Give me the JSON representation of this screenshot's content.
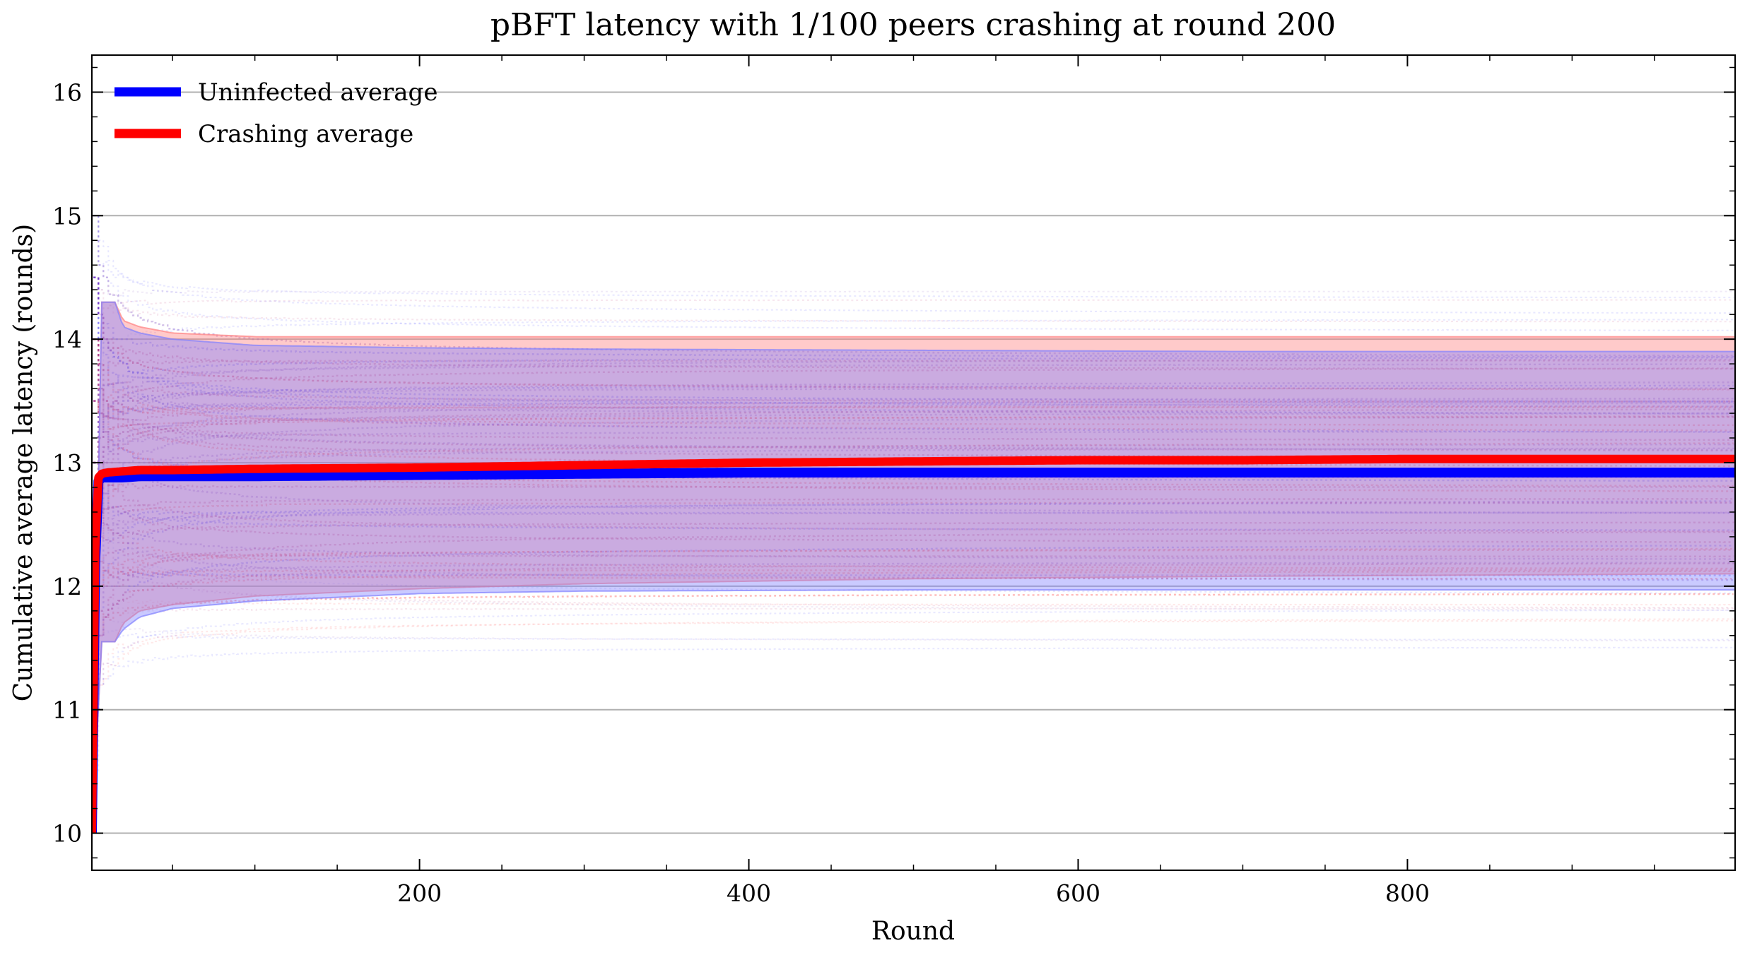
{
  "chart_data": {
    "type": "line",
    "title": "pBFT latency with 1/100 peers crashing at round 200",
    "xlabel": "Round",
    "ylabel": "Cumulative average latency (rounds)",
    "xlim": [
      1,
      999
    ],
    "ylim": [
      9.7,
      16.3
    ],
    "xticks": [
      200,
      400,
      600,
      800
    ],
    "yticks": [
      10,
      11,
      12,
      13,
      14,
      15,
      16
    ],
    "grid": "horizontal",
    "legend_position": "top-left",
    "series": [
      {
        "name": "Uninfected average",
        "color": "#0000ff",
        "x": [
          1,
          3,
          5,
          7,
          10,
          20,
          30,
          50,
          100,
          200,
          300,
          400,
          500,
          600,
          700,
          800,
          900,
          999
        ],
        "y": [
          10.0,
          12.2,
          12.85,
          12.88,
          12.88,
          12.88,
          12.89,
          12.89,
          12.89,
          12.9,
          12.91,
          12.92,
          12.92,
          12.92,
          12.92,
          12.92,
          12.92,
          12.92
        ]
      },
      {
        "name": "Crashing average",
        "color": "#ff0000",
        "x": [
          1,
          3,
          5,
          7,
          10,
          20,
          30,
          50,
          100,
          200,
          300,
          400,
          500,
          600,
          700,
          800,
          900,
          999
        ],
        "y": [
          10.0,
          12.3,
          12.88,
          12.91,
          12.92,
          12.93,
          12.94,
          12.94,
          12.95,
          12.96,
          12.98,
          13.0,
          13.01,
          13.02,
          13.02,
          13.03,
          13.03,
          13.03
        ]
      }
    ],
    "bands": [
      {
        "color": "#ff8080",
        "x": [
          1,
          7,
          15,
          20,
          30,
          50,
          100,
          200,
          300,
          500,
          700,
          999
        ],
        "upper": [
          10.0,
          14.3,
          14.3,
          14.15,
          14.1,
          14.05,
          14.02,
          14.02,
          14.02,
          14.02,
          14.02,
          14.02
        ],
        "lower": [
          10.0,
          11.55,
          11.55,
          11.7,
          11.8,
          11.85,
          11.92,
          11.98,
          12.02,
          12.06,
          12.08,
          12.1
        ]
      },
      {
        "color": "#8080ff",
        "x": [
          1,
          7,
          15,
          20,
          30,
          50,
          100,
          200,
          300,
          500,
          700,
          999
        ],
        "upper": [
          10.0,
          14.3,
          14.3,
          14.1,
          14.05,
          14.0,
          13.95,
          13.93,
          13.92,
          13.91,
          13.9,
          13.9
        ],
        "lower": [
          10.0,
          11.55,
          11.55,
          11.65,
          11.75,
          11.82,
          11.88,
          11.94,
          11.96,
          11.97,
          11.97,
          11.97
        ]
      }
    ]
  }
}
